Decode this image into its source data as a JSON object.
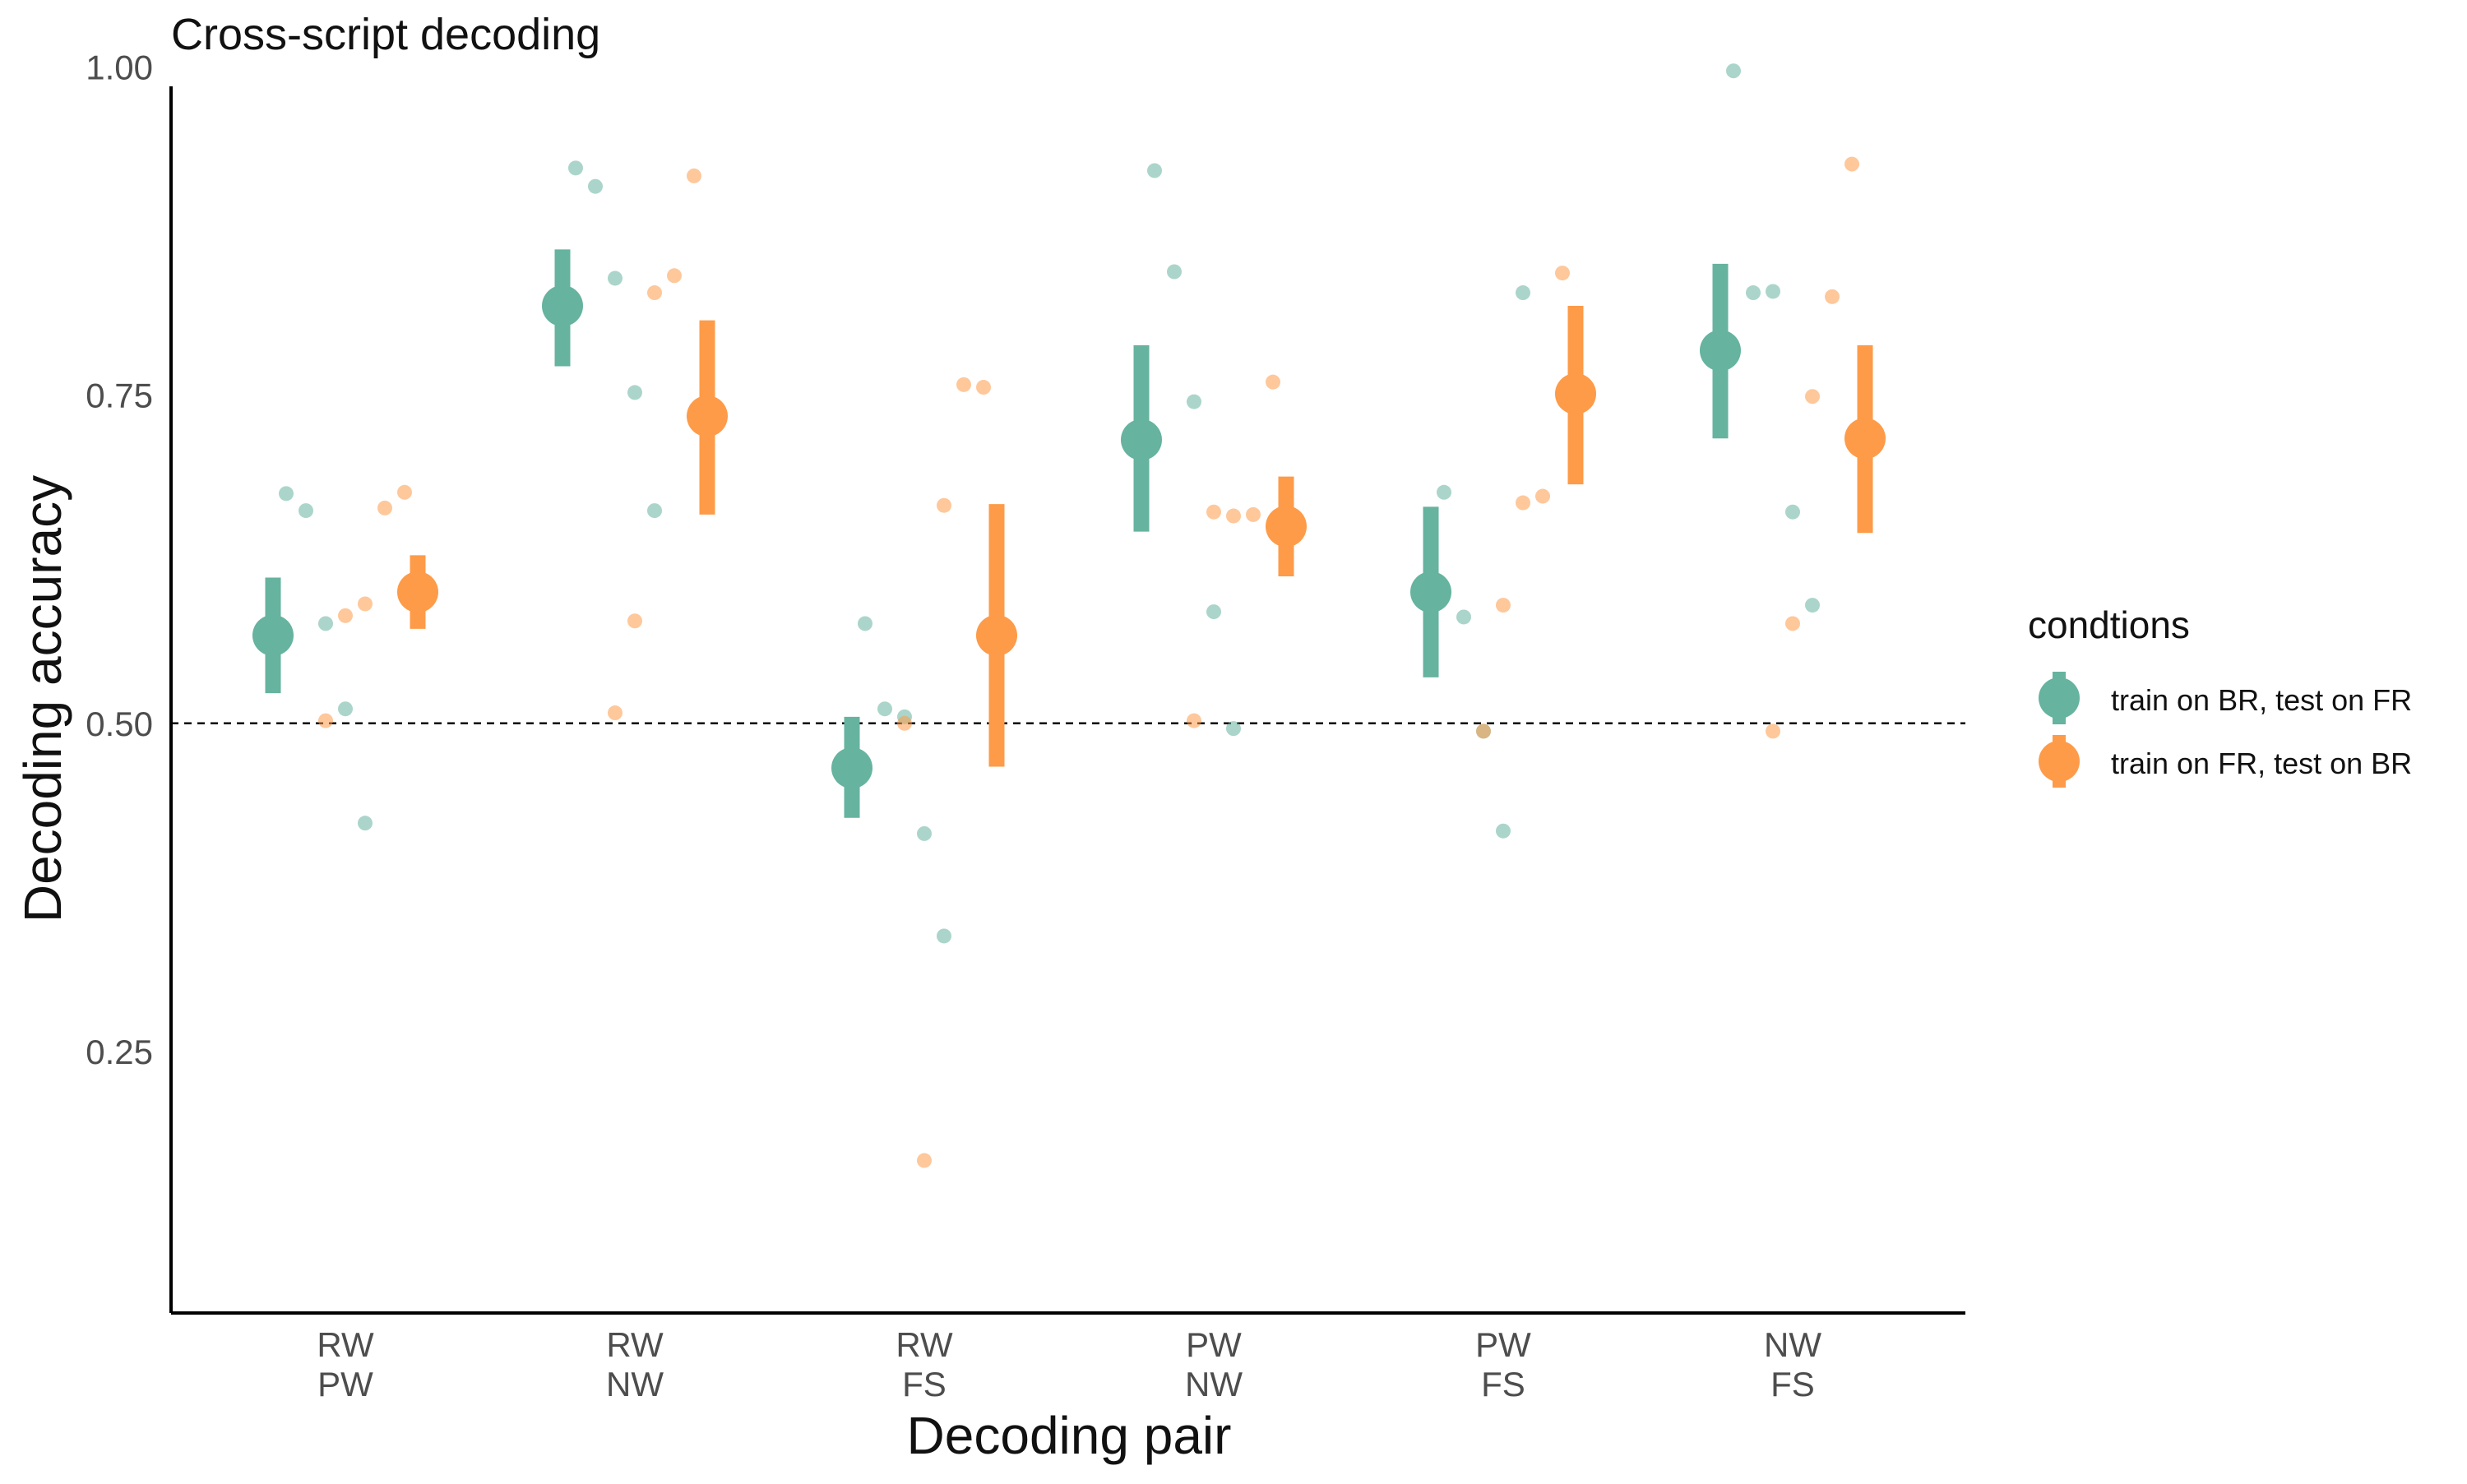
{
  "chart_data": {
    "type": "scatter",
    "title": "Cross-script decoding",
    "xlabel": "Decoding pair",
    "ylabel": "Decoding accuracy",
    "categories": [
      [
        "RW",
        "PW"
      ],
      [
        "RW",
        "NW"
      ],
      [
        "RW",
        "FS"
      ],
      [
        "PW",
        "NW"
      ],
      [
        "PW",
        "FS"
      ],
      [
        "NW",
        "FS"
      ]
    ],
    "ylim": [
      0.11,
      1.04
    ],
    "yticks": [
      0.25,
      0.5,
      0.75,
      1.0
    ],
    "ytick_labels": [
      "0.25",
      "0.50",
      "0.75",
      "1.00"
    ],
    "reference_line": {
      "y": 0.5,
      "style": "dashed"
    },
    "grid": false,
    "legend": {
      "title": "condtions",
      "position": "right"
    },
    "series": [
      {
        "name": "train on BR, test on FR",
        "color": "#66b39f",
        "summary": [
          {
            "mean": 0.567,
            "low": 0.523,
            "high": 0.611
          },
          {
            "mean": 0.818,
            "low": 0.772,
            "high": 0.861
          },
          {
            "mean": 0.466,
            "low": 0.428,
            "high": 0.505
          },
          {
            "mean": 0.716,
            "low": 0.646,
            "high": 0.788
          },
          {
            "mean": 0.6,
            "low": 0.535,
            "high": 0.665
          },
          {
            "mean": 0.784,
            "low": 0.717,
            "high": 0.85
          }
        ],
        "points": [
          [
            0.675,
            0.662,
            0.576,
            0.511,
            0.424
          ],
          [
            0.923,
            0.909,
            0.839,
            0.752,
            0.662
          ],
          [
            0.576,
            0.511,
            0.505,
            0.416,
            0.338
          ],
          [
            0.921,
            0.844,
            0.745,
            0.585,
            0.496
          ],
          [
            0.676,
            0.581,
            0.494,
            0.418,
            0.828
          ],
          [
            0.997,
            0.828,
            0.829,
            0.661,
            0.59
          ]
        ]
      },
      {
        "name": "train on FR, test on BR",
        "color": "#fd9b49",
        "summary": [
          {
            "mean": 0.6,
            "low": 0.572,
            "high": 0.628
          },
          {
            "mean": 0.734,
            "low": 0.659,
            "high": 0.807
          },
          {
            "mean": 0.567,
            "low": 0.467,
            "high": 0.667
          },
          {
            "mean": 0.65,
            "low": 0.612,
            "high": 0.688
          },
          {
            "mean": 0.751,
            "low": 0.682,
            "high": 0.818
          },
          {
            "mean": 0.717,
            "low": 0.645,
            "high": 0.788
          }
        ],
        "points": [
          [
            0.676,
            0.664,
            0.591,
            0.582,
            0.502
          ],
          [
            0.917,
            0.841,
            0.828,
            0.578,
            0.508
          ],
          [
            0.756,
            0.758,
            0.666,
            0.167,
            0.5
          ],
          [
            0.76,
            0.659,
            0.658,
            0.661,
            0.502
          ],
          [
            0.843,
            0.673,
            0.668,
            0.59,
            0.494
          ],
          [
            0.926,
            0.825,
            0.749,
            0.576,
            0.494
          ]
        ]
      }
    ]
  }
}
